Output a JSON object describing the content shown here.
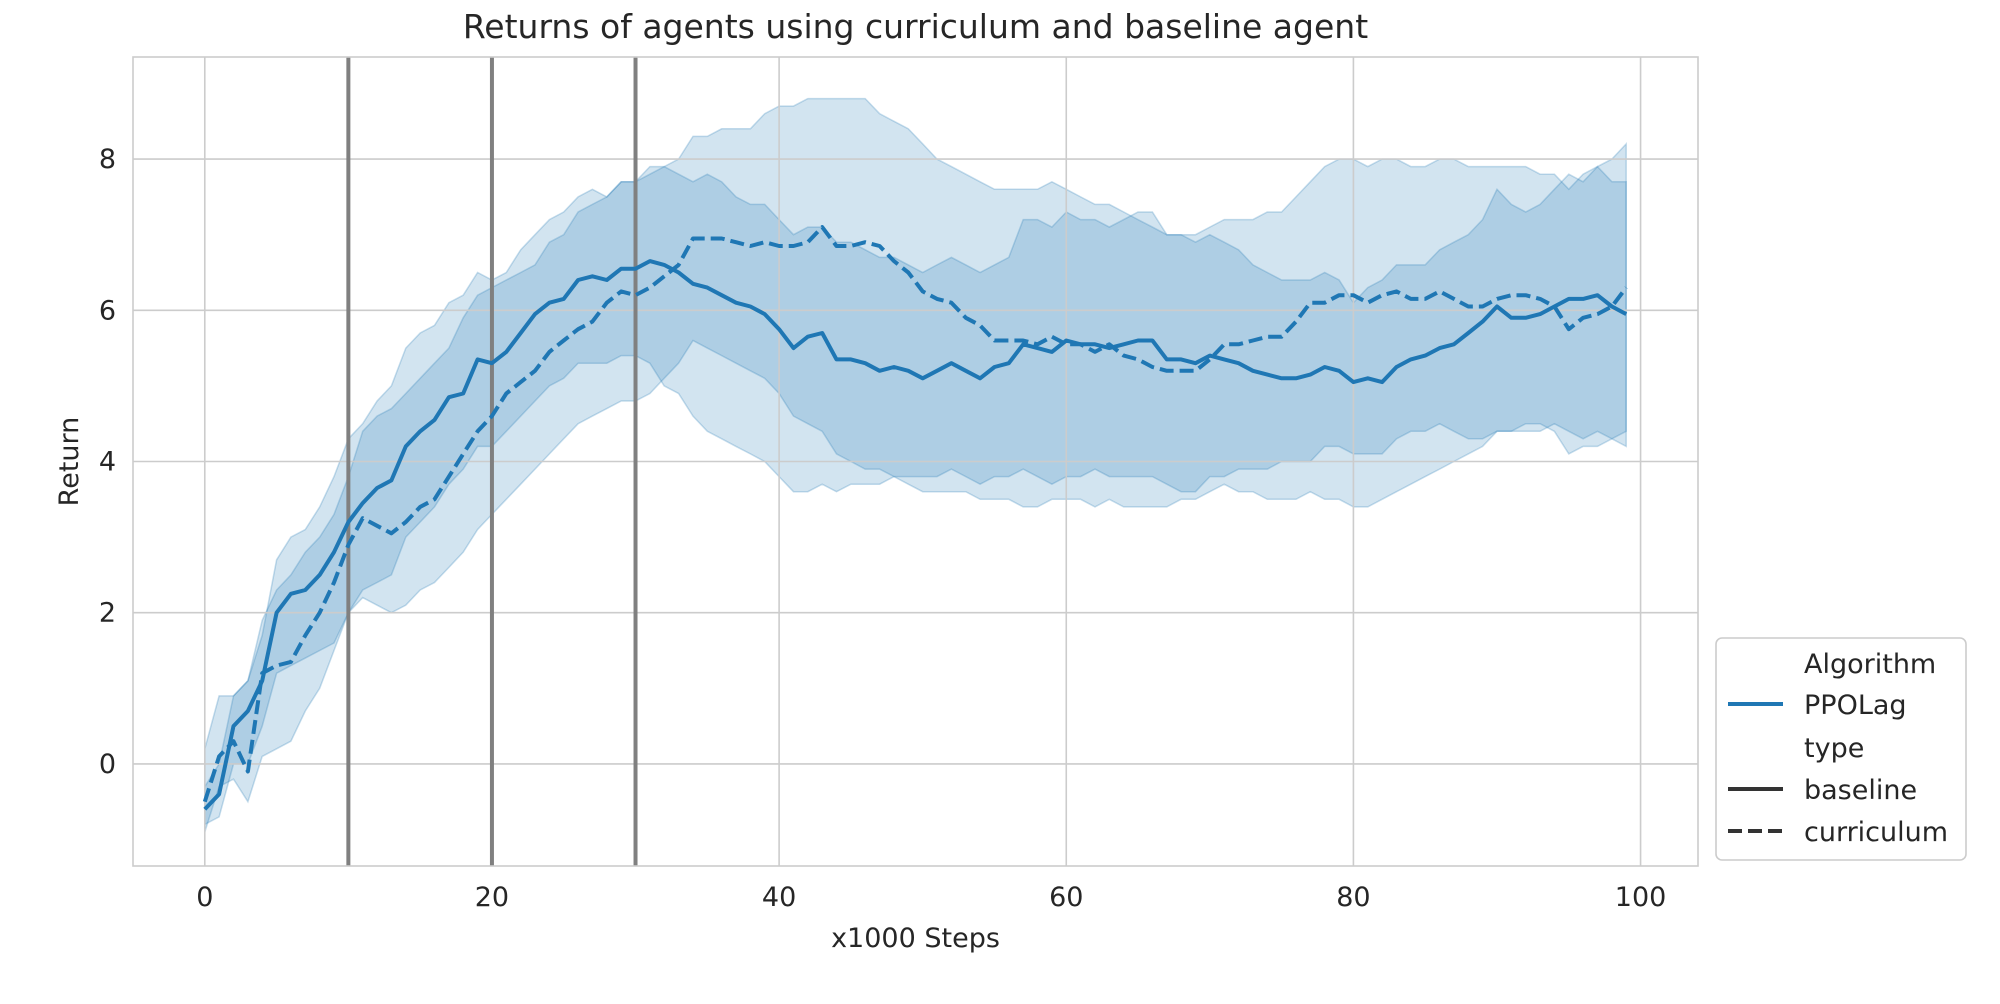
{
  "chart_data": {
    "type": "line",
    "title": "Returns of agents using curriculum and baseline agent",
    "xlabel": "x1000 Steps",
    "ylabel": "Return",
    "xlim": [
      -5,
      104
    ],
    "ylim": [
      -1.35,
      9.35
    ],
    "xticks": [
      0,
      20,
      40,
      60,
      80,
      100
    ],
    "yticks": [
      0,
      2,
      4,
      6,
      8
    ],
    "grid": true,
    "vlines": [
      10,
      20,
      30
    ],
    "legend": {
      "placement": "lower-right outside",
      "title_algorithm": "Algorithm",
      "algorithm_label": "PPOLag",
      "title_type": "type",
      "baseline_label": "baseline",
      "curriculum_label": "curriculum"
    },
    "colors": {
      "line": "#1f77b4",
      "vline": "#808080",
      "grid": "#cccccc"
    },
    "x": [
      0,
      1,
      2,
      3,
      4,
      5,
      6,
      7,
      8,
      9,
      10,
      11,
      12,
      13,
      14,
      15,
      16,
      17,
      18,
      19,
      20,
      21,
      22,
      23,
      24,
      25,
      26,
      27,
      28,
      29,
      30,
      31,
      32,
      33,
      34,
      35,
      36,
      37,
      38,
      39,
      40,
      41,
      42,
      43,
      44,
      45,
      46,
      47,
      48,
      49,
      50,
      51,
      52,
      53,
      54,
      55,
      56,
      57,
      58,
      59,
      60,
      61,
      62,
      63,
      64,
      65,
      66,
      67,
      68,
      69,
      70,
      71,
      72,
      73,
      74,
      75,
      76,
      77,
      78,
      79,
      80,
      81,
      82,
      83,
      84,
      85,
      86,
      87,
      88,
      89,
      90,
      91,
      92,
      93,
      94,
      95,
      96,
      97,
      98,
      99
    ],
    "series": [
      {
        "name": "baseline",
        "algorithm": "PPOLag",
        "style": "solid",
        "values": [
          -0.6,
          -0.4,
          0.5,
          0.7,
          1.1,
          2.0,
          2.25,
          2.3,
          2.5,
          2.8,
          3.2,
          3.45,
          3.65,
          3.75,
          4.2,
          4.4,
          4.55,
          4.85,
          4.9,
          5.35,
          5.3,
          5.45,
          5.7,
          5.95,
          6.1,
          6.15,
          6.4,
          6.45,
          6.4,
          6.55,
          6.55,
          6.65,
          6.6,
          6.5,
          6.35,
          6.3,
          6.2,
          6.1,
          6.05,
          5.95,
          5.75,
          5.5,
          5.65,
          5.7,
          5.35,
          5.35,
          5.3,
          5.2,
          5.25,
          5.2,
          5.1,
          5.2,
          5.3,
          5.2,
          5.1,
          5.25,
          5.3,
          5.55,
          5.5,
          5.45,
          5.6,
          5.55,
          5.55,
          5.5,
          5.55,
          5.6,
          5.6,
          5.35,
          5.35,
          5.3,
          5.4,
          5.35,
          5.3,
          5.2,
          5.15,
          5.1,
          5.1,
          5.15,
          5.25,
          5.2,
          5.05,
          5.1,
          5.05,
          5.25,
          5.35,
          5.4,
          5.5,
          5.55,
          5.7,
          5.85,
          6.05,
          5.9,
          5.9,
          5.95,
          6.05,
          6.15,
          6.15,
          6.2,
          6.05,
          5.95
        ],
        "band_low": [
          -0.8,
          -0.7,
          0.0,
          0.0,
          0.5,
          1.2,
          1.3,
          1.4,
          1.5,
          1.6,
          2.0,
          2.3,
          2.4,
          2.5,
          3.0,
          3.2,
          3.4,
          3.7,
          3.9,
          4.2,
          4.2,
          4.4,
          4.6,
          4.8,
          5.0,
          5.1,
          5.3,
          5.3,
          5.3,
          5.4,
          5.4,
          5.3,
          5.0,
          4.9,
          4.6,
          4.4,
          4.3,
          4.2,
          4.1,
          4.0,
          3.8,
          3.6,
          3.6,
          3.7,
          3.6,
          3.7,
          3.7,
          3.7,
          3.8,
          3.8,
          3.8,
          3.8,
          3.9,
          3.8,
          3.7,
          3.8,
          3.8,
          3.9,
          3.8,
          3.7,
          3.8,
          3.8,
          3.9,
          3.8,
          3.8,
          3.8,
          3.8,
          3.7,
          3.6,
          3.6,
          3.8,
          3.8,
          3.9,
          3.9,
          3.9,
          4.0,
          4.0,
          4.0,
          4.2,
          4.2,
          4.1,
          4.1,
          4.1,
          4.3,
          4.4,
          4.4,
          4.5,
          4.4,
          4.3,
          4.3,
          4.4,
          4.4,
          4.4,
          4.4,
          4.5,
          4.4,
          4.3,
          4.4,
          4.3,
          4.4
        ],
        "band_high": [
          -0.3,
          0.0,
          0.9,
          1.1,
          1.7,
          2.7,
          3.0,
          3.1,
          3.4,
          3.8,
          4.3,
          4.5,
          4.8,
          5.0,
          5.5,
          5.7,
          5.8,
          6.1,
          6.2,
          6.5,
          6.4,
          6.5,
          6.8,
          7.0,
          7.2,
          7.3,
          7.5,
          7.6,
          7.5,
          7.7,
          7.7,
          7.9,
          7.9,
          7.8,
          7.7,
          7.8,
          7.7,
          7.5,
          7.4,
          7.4,
          7.2,
          7.0,
          7.1,
          7.1,
          6.9,
          6.9,
          6.8,
          6.7,
          6.7,
          6.6,
          6.5,
          6.6,
          6.7,
          6.6,
          6.5,
          6.6,
          6.7,
          7.2,
          7.2,
          7.1,
          7.3,
          7.2,
          7.2,
          7.1,
          7.2,
          7.3,
          7.3,
          7.0,
          7.0,
          6.9,
          7.0,
          6.9,
          6.8,
          6.6,
          6.5,
          6.4,
          6.4,
          6.4,
          6.5,
          6.4,
          6.1,
          6.3,
          6.4,
          6.6,
          6.6,
          6.6,
          6.8,
          6.9,
          7.0,
          7.2,
          7.6,
          7.4,
          7.3,
          7.4,
          7.6,
          7.8,
          7.7,
          7.9,
          7.7,
          7.7
        ]
      },
      {
        "name": "curriculum",
        "algorithm": "PPOLag",
        "style": "dashed",
        "values": [
          -0.5,
          0.1,
          0.3,
          -0.1,
          1.2,
          1.3,
          1.35,
          1.7,
          2.0,
          2.4,
          2.9,
          3.25,
          3.15,
          3.05,
          3.2,
          3.4,
          3.5,
          3.8,
          4.1,
          4.4,
          4.6,
          4.9,
          5.05,
          5.2,
          5.45,
          5.6,
          5.75,
          5.85,
          6.1,
          6.25,
          6.2,
          6.3,
          6.45,
          6.6,
          6.95,
          6.95,
          6.95,
          6.9,
          6.85,
          6.9,
          6.85,
          6.85,
          6.9,
          7.1,
          6.85,
          6.85,
          6.9,
          6.85,
          6.65,
          6.5,
          6.25,
          6.15,
          6.1,
          5.9,
          5.8,
          5.6,
          5.6,
          5.6,
          5.55,
          5.65,
          5.55,
          5.55,
          5.45,
          5.55,
          5.4,
          5.35,
          5.25,
          5.2,
          5.2,
          5.2,
          5.35,
          5.55,
          5.55,
          5.6,
          5.65,
          5.65,
          5.85,
          6.1,
          6.1,
          6.2,
          6.2,
          6.1,
          6.2,
          6.25,
          6.15,
          6.15,
          6.25,
          6.15,
          6.05,
          6.05,
          6.15,
          6.2,
          6.2,
          6.15,
          6.05,
          5.75,
          5.9,
          5.95,
          6.05,
          6.3
        ],
        "band_low": [
          -0.9,
          -0.3,
          -0.2,
          -0.5,
          0.1,
          0.2,
          0.3,
          0.7,
          1.0,
          1.5,
          2.0,
          2.2,
          2.1,
          2.0,
          2.1,
          2.3,
          2.4,
          2.6,
          2.8,
          3.1,
          3.3,
          3.5,
          3.7,
          3.9,
          4.1,
          4.3,
          4.5,
          4.6,
          4.7,
          4.8,
          4.8,
          4.9,
          5.1,
          5.3,
          5.6,
          5.5,
          5.4,
          5.3,
          5.2,
          5.1,
          4.9,
          4.6,
          4.5,
          4.4,
          4.1,
          4.0,
          3.9,
          3.9,
          3.8,
          3.7,
          3.6,
          3.6,
          3.6,
          3.6,
          3.5,
          3.5,
          3.5,
          3.4,
          3.4,
          3.5,
          3.5,
          3.5,
          3.4,
          3.5,
          3.4,
          3.4,
          3.4,
          3.4,
          3.5,
          3.5,
          3.6,
          3.7,
          3.6,
          3.6,
          3.5,
          3.5,
          3.5,
          3.6,
          3.5,
          3.5,
          3.4,
          3.4,
          3.5,
          3.6,
          3.7,
          3.8,
          3.9,
          4.0,
          4.1,
          4.2,
          4.4,
          4.4,
          4.5,
          4.5,
          4.4,
          4.1,
          4.2,
          4.2,
          4.3,
          4.2
        ],
        "band_high": [
          0.2,
          0.9,
          0.9,
          1.1,
          1.9,
          2.3,
          2.5,
          2.8,
          3.0,
          3.3,
          3.8,
          4.4,
          4.6,
          4.7,
          4.9,
          5.1,
          5.3,
          5.5,
          5.9,
          6.2,
          6.3,
          6.4,
          6.5,
          6.6,
          6.9,
          7.0,
          7.3,
          7.4,
          7.5,
          7.7,
          7.7,
          7.8,
          7.9,
          8.0,
          8.3,
          8.3,
          8.4,
          8.4,
          8.4,
          8.6,
          8.7,
          8.7,
          8.8,
          8.8,
          8.8,
          8.8,
          8.8,
          8.6,
          8.5,
          8.4,
          8.2,
          8.0,
          7.9,
          7.8,
          7.7,
          7.6,
          7.6,
          7.6,
          7.6,
          7.7,
          7.6,
          7.5,
          7.4,
          7.4,
          7.3,
          7.2,
          7.1,
          7.0,
          7.0,
          7.0,
          7.1,
          7.2,
          7.2,
          7.2,
          7.3,
          7.3,
          7.5,
          7.7,
          7.9,
          8.0,
          8.0,
          7.9,
          8.0,
          8.0,
          7.9,
          7.9,
          8.0,
          8.0,
          7.9,
          7.9,
          7.9,
          7.9,
          7.9,
          7.8,
          7.8,
          7.6,
          7.8,
          7.9,
          8.0,
          8.2
        ]
      }
    ]
  }
}
